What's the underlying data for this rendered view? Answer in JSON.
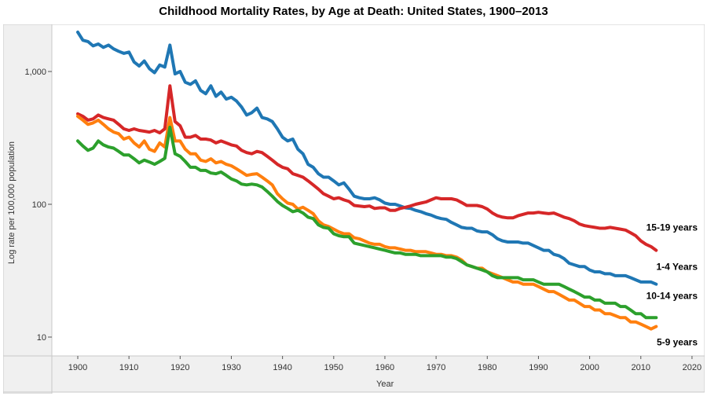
{
  "chart_data": {
    "type": "line",
    "title": "Childhood Mortality Rates, by Age at Death: United States, 1900–2013",
    "xlabel": "Year",
    "ylabel": "Log rate per 100,000 population",
    "yscale": "log",
    "xlim": [
      1895,
      2020
    ],
    "ylim": [
      6,
      2500
    ],
    "grid": false,
    "legend": "end-of-line labels (right)",
    "x_ticks": [
      1900,
      1910,
      1920,
      1930,
      1940,
      1950,
      1960,
      1970,
      1980,
      1990,
      2000,
      2010,
      2020
    ],
    "x_tick_labels": [
      "1900",
      "1910",
      "1920",
      "1930",
      "1940",
      "1950",
      "1960",
      "1970",
      "1980",
      "1990",
      "2000",
      "2010",
      "2020"
    ],
    "y_ticks": [
      10,
      100,
      1000
    ],
    "y_tick_labels": [
      "10",
      "100",
      "1,000"
    ],
    "series": [
      {
        "name": "1-4 Years",
        "color": "#1f77b4",
        "x": [
          1900,
          1901,
          1902,
          1903,
          1904,
          1905,
          1906,
          1907,
          1908,
          1909,
          1910,
          1911,
          1912,
          1913,
          1914,
          1915,
          1916,
          1917,
          1918,
          1919,
          1920,
          1921,
          1922,
          1923,
          1924,
          1925,
          1926,
          1927,
          1928,
          1929,
          1930,
          1931,
          1932,
          1933,
          1934,
          1935,
          1936,
          1937,
          1938,
          1939,
          1940,
          1941,
          1942,
          1943,
          1944,
          1945,
          1946,
          1947,
          1948,
          1949,
          1950,
          1951,
          1952,
          1953,
          1954,
          1955,
          1956,
          1957,
          1958,
          1959,
          1960,
          1961,
          1962,
          1963,
          1964,
          1965,
          1966,
          1967,
          1968,
          1969,
          1970,
          1971,
          1972,
          1973,
          1974,
          1975,
          1976,
          1977,
          1978,
          1979,
          1980,
          1981,
          1982,
          1983,
          1984,
          1985,
          1986,
          1987,
          1988,
          1989,
          1990,
          1991,
          1992,
          1993,
          1994,
          1995,
          1996,
          1997,
          1998,
          1999,
          2000,
          2001,
          2002,
          2003,
          2004,
          2005,
          2006,
          2007,
          2008,
          2009,
          2010,
          2011,
          2012,
          2013
        ],
        "values": [
          1980,
          1720,
          1680,
          1560,
          1610,
          1520,
          1580,
          1480,
          1420,
          1370,
          1400,
          1180,
          1100,
          1200,
          1050,
          980,
          1120,
          1080,
          1580,
          960,
          1000,
          830,
          800,
          850,
          720,
          680,
          780,
          650,
          700,
          620,
          640,
          600,
          540,
          470,
          490,
          530,
          450,
          440,
          420,
          370,
          320,
          300,
          310,
          260,
          240,
          200,
          190,
          170,
          160,
          160,
          150,
          140,
          145,
          130,
          115,
          112,
          110,
          110,
          112,
          108,
          102,
          100,
          100,
          97,
          94,
          93,
          90,
          88,
          85,
          83,
          80,
          78,
          77,
          73,
          70,
          67,
          66,
          66,
          63,
          62,
          62,
          59,
          55,
          53,
          52,
          52,
          52,
          51,
          51,
          49,
          47,
          45,
          45,
          42,
          41,
          39,
          36,
          35,
          34,
          34,
          32,
          31,
          31,
          30,
          30,
          29,
          29,
          29,
          28,
          27,
          26,
          26,
          26,
          25
        ]
      },
      {
        "name": "15-19 years",
        "color": "#d62728",
        "x": [
          1900,
          1901,
          1902,
          1903,
          1904,
          1905,
          1906,
          1907,
          1908,
          1909,
          1910,
          1911,
          1912,
          1913,
          1914,
          1915,
          1916,
          1917,
          1918,
          1919,
          1920,
          1921,
          1922,
          1923,
          1924,
          1925,
          1926,
          1927,
          1928,
          1929,
          1930,
          1931,
          1932,
          1933,
          1934,
          1935,
          1936,
          1937,
          1938,
          1939,
          1940,
          1941,
          1942,
          1943,
          1944,
          1945,
          1946,
          1947,
          1948,
          1949,
          1950,
          1951,
          1952,
          1953,
          1954,
          1955,
          1956,
          1957,
          1958,
          1959,
          1960,
          1961,
          1962,
          1963,
          1964,
          1965,
          1966,
          1967,
          1968,
          1969,
          1970,
          1971,
          1972,
          1973,
          1974,
          1975,
          1976,
          1977,
          1978,
          1979,
          1980,
          1981,
          1982,
          1983,
          1984,
          1985,
          1986,
          1987,
          1988,
          1989,
          1990,
          1991,
          1992,
          1993,
          1994,
          1995,
          1996,
          1997,
          1998,
          1999,
          2000,
          2001,
          2002,
          2003,
          2004,
          2005,
          2006,
          2007,
          2008,
          2009,
          2010,
          2011,
          2012,
          2013
        ],
        "values": [
          480,
          460,
          430,
          440,
          470,
          450,
          440,
          430,
          400,
          370,
          360,
          370,
          360,
          355,
          350,
          360,
          345,
          370,
          780,
          420,
          390,
          320,
          320,
          330,
          310,
          310,
          305,
          290,
          300,
          290,
          280,
          275,
          255,
          245,
          240,
          250,
          245,
          230,
          215,
          200,
          190,
          185,
          170,
          165,
          160,
          150,
          140,
          130,
          120,
          115,
          110,
          112,
          108,
          105,
          98,
          97,
          96,
          97,
          93,
          94,
          94,
          90,
          90,
          93,
          95,
          97,
          100,
          102,
          104,
          108,
          112,
          110,
          110,
          110,
          108,
          103,
          98,
          98,
          98,
          96,
          92,
          86,
          82,
          80,
          79,
          79,
          82,
          84,
          86,
          86,
          87,
          86,
          85,
          86,
          83,
          80,
          78,
          75,
          71,
          69,
          68,
          67,
          66,
          66,
          67,
          66,
          65,
          64,
          61,
          58,
          53,
          50,
          48,
          45
        ]
      },
      {
        "name": "5-9 years",
        "color": "#ff7f0e",
        "x": [
          1900,
          1901,
          1902,
          1903,
          1904,
          1905,
          1906,
          1907,
          1908,
          1909,
          1910,
          1911,
          1912,
          1913,
          1914,
          1915,
          1916,
          1917,
          1918,
          1919,
          1920,
          1921,
          1922,
          1923,
          1924,
          1925,
          1926,
          1927,
          1928,
          1929,
          1930,
          1931,
          1932,
          1933,
          1934,
          1935,
          1936,
          1937,
          1938,
          1939,
          1940,
          1941,
          1942,
          1943,
          1944,
          1945,
          1946,
          1947,
          1948,
          1949,
          1950,
          1951,
          1952,
          1953,
          1954,
          1955,
          1956,
          1957,
          1958,
          1959,
          1960,
          1961,
          1962,
          1963,
          1964,
          1965,
          1966,
          1967,
          1968,
          1969,
          1970,
          1971,
          1972,
          1973,
          1974,
          1975,
          1976,
          1977,
          1978,
          1979,
          1980,
          1981,
          1982,
          1983,
          1984,
          1985,
          1986,
          1987,
          1988,
          1989,
          1990,
          1991,
          1992,
          1993,
          1994,
          1995,
          1996,
          1997,
          1998,
          1999,
          2000,
          2001,
          2002,
          2003,
          2004,
          2005,
          2006,
          2007,
          2008,
          2009,
          2010,
          2011,
          2012,
          2013
        ],
        "values": [
          460,
          430,
          400,
          410,
          430,
          400,
          370,
          350,
          340,
          310,
          320,
          290,
          270,
          300,
          260,
          250,
          290,
          270,
          450,
          300,
          300,
          260,
          240,
          240,
          215,
          210,
          220,
          205,
          210,
          200,
          195,
          185,
          175,
          165,
          168,
          170,
          160,
          150,
          140,
          120,
          110,
          102,
          100,
          92,
          95,
          90,
          85,
          75,
          70,
          68,
          65,
          62,
          60,
          60,
          56,
          55,
          53,
          51,
          50,
          50,
          48,
          47,
          47,
          46,
          45,
          45,
          44,
          44,
          44,
          43,
          42,
          42,
          41,
          41,
          40,
          38,
          35,
          34,
          33,
          33,
          31,
          30,
          29,
          28,
          27,
          26,
          26,
          25,
          25,
          25,
          24,
          23,
          22,
          22,
          21,
          20,
          19,
          19,
          18,
          17,
          17,
          16,
          16,
          15,
          15,
          14.5,
          14,
          14,
          13,
          13,
          12.5,
          12,
          11.5,
          12
        ]
      },
      {
        "name": "10-14 years",
        "color": "#2ca02c",
        "x": [
          1900,
          1901,
          1902,
          1903,
          1904,
          1905,
          1906,
          1907,
          1908,
          1909,
          1910,
          1911,
          1912,
          1913,
          1914,
          1915,
          1916,
          1917,
          1918,
          1919,
          1920,
          1921,
          1922,
          1923,
          1924,
          1925,
          1926,
          1927,
          1928,
          1929,
          1930,
          1931,
          1932,
          1933,
          1934,
          1935,
          1936,
          1937,
          1938,
          1939,
          1940,
          1941,
          1942,
          1943,
          1944,
          1945,
          1946,
          1947,
          1948,
          1949,
          1950,
          1951,
          1952,
          1953,
          1954,
          1955,
          1956,
          1957,
          1958,
          1959,
          1960,
          1961,
          1962,
          1963,
          1964,
          1965,
          1966,
          1967,
          1968,
          1969,
          1970,
          1971,
          1972,
          1973,
          1974,
          1975,
          1976,
          1977,
          1978,
          1979,
          1980,
          1981,
          1982,
          1983,
          1984,
          1985,
          1986,
          1987,
          1988,
          1989,
          1990,
          1991,
          1992,
          1993,
          1994,
          1995,
          1996,
          1997,
          1998,
          1999,
          2000,
          2001,
          2002,
          2003,
          2004,
          2005,
          2006,
          2007,
          2008,
          2009,
          2010,
          2011,
          2012,
          2013
        ],
        "values": [
          300,
          275,
          255,
          265,
          300,
          280,
          270,
          265,
          250,
          235,
          235,
          220,
          205,
          215,
          208,
          200,
          210,
          222,
          380,
          240,
          230,
          210,
          190,
          190,
          180,
          180,
          172,
          170,
          175,
          165,
          155,
          150,
          142,
          140,
          142,
          140,
          135,
          125,
          115,
          105,
          98,
          93,
          88,
          90,
          86,
          80,
          78,
          70,
          67,
          66,
          60,
          58,
          57,
          57,
          51,
          50,
          49,
          48,
          47,
          46,
          45,
          44,
          43,
          43,
          42,
          42,
          42,
          41,
          41,
          41,
          41,
          41,
          40,
          40,
          39,
          37,
          35,
          34,
          33,
          32,
          31,
          29,
          28,
          28,
          28,
          28,
          28,
          27,
          27,
          27,
          26,
          25,
          25,
          25,
          25,
          24,
          23,
          22,
          21,
          20,
          20,
          19,
          19,
          18,
          18,
          18,
          17,
          17,
          16,
          15,
          15,
          14,
          14,
          14
        ]
      }
    ]
  }
}
